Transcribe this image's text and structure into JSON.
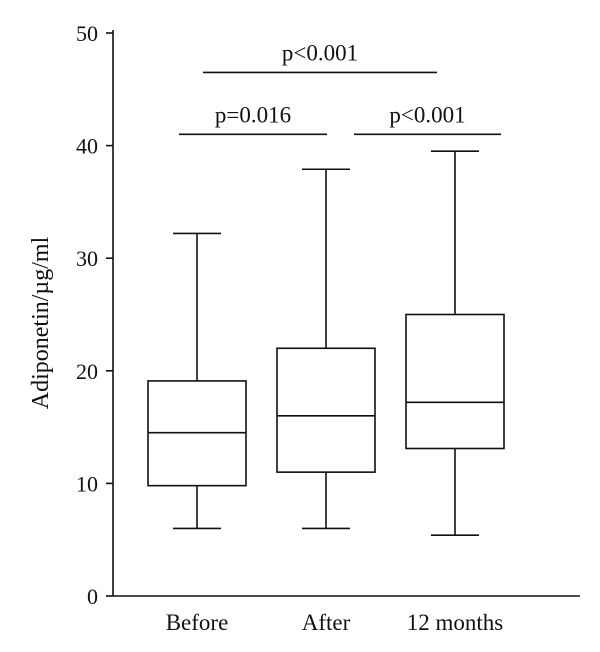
{
  "chart_data": {
    "type": "box",
    "ylabel": "Adiponetin/µg/ml",
    "xlabel": "",
    "ylim": [
      0,
      50
    ],
    "yticks": [
      0,
      10,
      20,
      30,
      40,
      50
    ],
    "categories": [
      "Before",
      "After",
      "12 months"
    ],
    "boxes": [
      {
        "label": "Before",
        "min": 6.0,
        "q1": 9.8,
        "median": 14.5,
        "q3": 19.1,
        "max": 32.2
      },
      {
        "label": "After",
        "min": 6.0,
        "q1": 11.0,
        "median": 16.0,
        "q3": 22.0,
        "max": 37.9
      },
      {
        "label": "12 months",
        "min": 5.4,
        "q1": 13.1,
        "median": 17.2,
        "q3": 25.0,
        "max": 39.5
      }
    ],
    "significance": [
      {
        "from": "Before",
        "to": "12 months",
        "label": "p<0.001",
        "y": 46.5
      },
      {
        "from": "Before",
        "to": "After",
        "label": "p=0.016",
        "y": 41.0
      },
      {
        "from": "After",
        "to": "12 months",
        "label": "p<0.001",
        "y": 41.0
      }
    ]
  }
}
